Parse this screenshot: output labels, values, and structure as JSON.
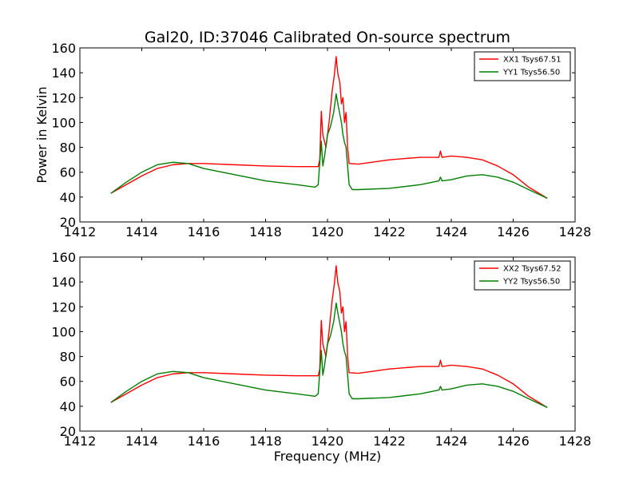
{
  "chart_data": [
    {
      "type": "line",
      "title": "Gal20, ID:37046 Calibrated On-source spectrum",
      "xlabel": "",
      "ylabel": "Power in Kelvin",
      "xlim": [
        1412,
        1428
      ],
      "ylim": [
        20,
        160
      ],
      "xticks": [
        1412,
        1414,
        1416,
        1418,
        1420,
        1422,
        1424,
        1426,
        1428
      ],
      "yticks": [
        20,
        40,
        60,
        80,
        100,
        120,
        140,
        160
      ],
      "legend": "top-right",
      "series": [
        {
          "name": "XX1 Tsys67.51",
          "color": "#ff0000",
          "points": [
            [
              1413.0,
              43
            ],
            [
              1413.5,
              50
            ],
            [
              1414.0,
              57
            ],
            [
              1414.5,
              63
            ],
            [
              1415.0,
              66
            ],
            [
              1415.5,
              67
            ],
            [
              1416.0,
              67
            ],
            [
              1417.0,
              66
            ],
            [
              1418.0,
              65
            ],
            [
              1419.0,
              64.5
            ],
            [
              1419.7,
              64.5
            ],
            [
              1419.75,
              70
            ],
            [
              1419.8,
              109
            ],
            [
              1419.85,
              90
            ],
            [
              1419.95,
              80
            ],
            [
              1420.05,
              100
            ],
            [
              1420.15,
              125
            ],
            [
              1420.22,
              138
            ],
            [
              1420.28,
              153
            ],
            [
              1420.33,
              140
            ],
            [
              1420.4,
              132
            ],
            [
              1420.45,
              115
            ],
            [
              1420.5,
              120
            ],
            [
              1420.55,
              100
            ],
            [
              1420.6,
              108
            ],
            [
              1420.65,
              80
            ],
            [
              1420.7,
              67
            ],
            [
              1421.0,
              66.5
            ],
            [
              1422.0,
              70
            ],
            [
              1423.0,
              72
            ],
            [
              1423.6,
              72
            ],
            [
              1423.65,
              77
            ],
            [
              1423.7,
              72
            ],
            [
              1424.0,
              73
            ],
            [
              1424.5,
              72
            ],
            [
              1425.0,
              70
            ],
            [
              1425.5,
              65
            ],
            [
              1426.0,
              58
            ],
            [
              1426.5,
              48
            ],
            [
              1427.1,
              39
            ]
          ]
        },
        {
          "name": "YY1 Tsys56.50",
          "color": "#008000",
          "points": [
            [
              1413.0,
              43
            ],
            [
              1413.5,
              52
            ],
            [
              1414.0,
              60
            ],
            [
              1414.5,
              66
            ],
            [
              1415.0,
              68
            ],
            [
              1415.5,
              67
            ],
            [
              1416.0,
              63
            ],
            [
              1417.0,
              58
            ],
            [
              1418.0,
              53
            ],
            [
              1419.0,
              50
            ],
            [
              1419.6,
              48
            ],
            [
              1419.7,
              50
            ],
            [
              1419.8,
              85
            ],
            [
              1419.85,
              65
            ],
            [
              1419.9,
              72
            ],
            [
              1420.0,
              90
            ],
            [
              1420.1,
              97
            ],
            [
              1420.2,
              108
            ],
            [
              1420.28,
              123
            ],
            [
              1420.35,
              113
            ],
            [
              1420.45,
              100
            ],
            [
              1420.5,
              90
            ],
            [
              1420.55,
              84
            ],
            [
              1420.6,
              80
            ],
            [
              1420.7,
              50
            ],
            [
              1420.8,
              46
            ],
            [
              1421.0,
              46
            ],
            [
              1422.0,
              47
            ],
            [
              1423.0,
              50
            ],
            [
              1423.6,
              53
            ],
            [
              1423.65,
              56
            ],
            [
              1423.7,
              53
            ],
            [
              1424.0,
              54
            ],
            [
              1424.5,
              57
            ],
            [
              1425.0,
              58
            ],
            [
              1425.5,
              56
            ],
            [
              1426.0,
              52
            ],
            [
              1426.5,
              46
            ],
            [
              1427.1,
              39
            ]
          ]
        }
      ]
    },
    {
      "type": "line",
      "title": "",
      "xlabel": "Frequency (MHz)",
      "ylabel": "",
      "xlim": [
        1412,
        1428
      ],
      "ylim": [
        20,
        160
      ],
      "xticks": [
        1412,
        1414,
        1416,
        1418,
        1420,
        1422,
        1424,
        1426,
        1428
      ],
      "yticks": [
        20,
        40,
        60,
        80,
        100,
        120,
        140,
        160
      ],
      "legend": "top-right",
      "series": [
        {
          "name": "XX2 Tsys67.52",
          "color": "#ff0000",
          "points": [
            [
              1413.0,
              43
            ],
            [
              1413.5,
              50
            ],
            [
              1414.0,
              57
            ],
            [
              1414.5,
              63
            ],
            [
              1415.0,
              66
            ],
            [
              1415.5,
              67
            ],
            [
              1416.0,
              67
            ],
            [
              1417.0,
              66
            ],
            [
              1418.0,
              65
            ],
            [
              1419.0,
              64.5
            ],
            [
              1419.7,
              64.5
            ],
            [
              1419.75,
              70
            ],
            [
              1419.8,
              109
            ],
            [
              1419.85,
              90
            ],
            [
              1419.95,
              80
            ],
            [
              1420.05,
              100
            ],
            [
              1420.15,
              125
            ],
            [
              1420.22,
              138
            ],
            [
              1420.28,
              153
            ],
            [
              1420.33,
              140
            ],
            [
              1420.4,
              132
            ],
            [
              1420.45,
              115
            ],
            [
              1420.5,
              120
            ],
            [
              1420.55,
              100
            ],
            [
              1420.6,
              108
            ],
            [
              1420.65,
              80
            ],
            [
              1420.7,
              67
            ],
            [
              1421.0,
              66.5
            ],
            [
              1422.0,
              70
            ],
            [
              1423.0,
              72
            ],
            [
              1423.6,
              72
            ],
            [
              1423.65,
              77
            ],
            [
              1423.7,
              72
            ],
            [
              1424.0,
              73
            ],
            [
              1424.5,
              72
            ],
            [
              1425.0,
              70
            ],
            [
              1425.5,
              65
            ],
            [
              1426.0,
              58
            ],
            [
              1426.5,
              48
            ],
            [
              1427.1,
              39
            ]
          ]
        },
        {
          "name": "YY2 Tsys56.50",
          "color": "#008000",
          "points": [
            [
              1413.0,
              43
            ],
            [
              1413.5,
              52
            ],
            [
              1414.0,
              60
            ],
            [
              1414.5,
              66
            ],
            [
              1415.0,
              68
            ],
            [
              1415.5,
              67
            ],
            [
              1416.0,
              63
            ],
            [
              1417.0,
              58
            ],
            [
              1418.0,
              53
            ],
            [
              1419.0,
              50
            ],
            [
              1419.6,
              48
            ],
            [
              1419.7,
              50
            ],
            [
              1419.8,
              85
            ],
            [
              1419.85,
              65
            ],
            [
              1419.9,
              72
            ],
            [
              1420.0,
              90
            ],
            [
              1420.1,
              97
            ],
            [
              1420.2,
              108
            ],
            [
              1420.28,
              123
            ],
            [
              1420.35,
              113
            ],
            [
              1420.45,
              100
            ],
            [
              1420.5,
              90
            ],
            [
              1420.55,
              84
            ],
            [
              1420.6,
              80
            ],
            [
              1420.7,
              50
            ],
            [
              1420.8,
              46
            ],
            [
              1421.0,
              46
            ],
            [
              1422.0,
              47
            ],
            [
              1423.0,
              50
            ],
            [
              1423.6,
              53
            ],
            [
              1423.65,
              56
            ],
            [
              1423.7,
              53
            ],
            [
              1424.0,
              54
            ],
            [
              1424.5,
              57
            ],
            [
              1425.0,
              58
            ],
            [
              1425.5,
              56
            ],
            [
              1426.0,
              52
            ],
            [
              1426.5,
              46
            ],
            [
              1427.1,
              39
            ]
          ]
        }
      ]
    }
  ]
}
